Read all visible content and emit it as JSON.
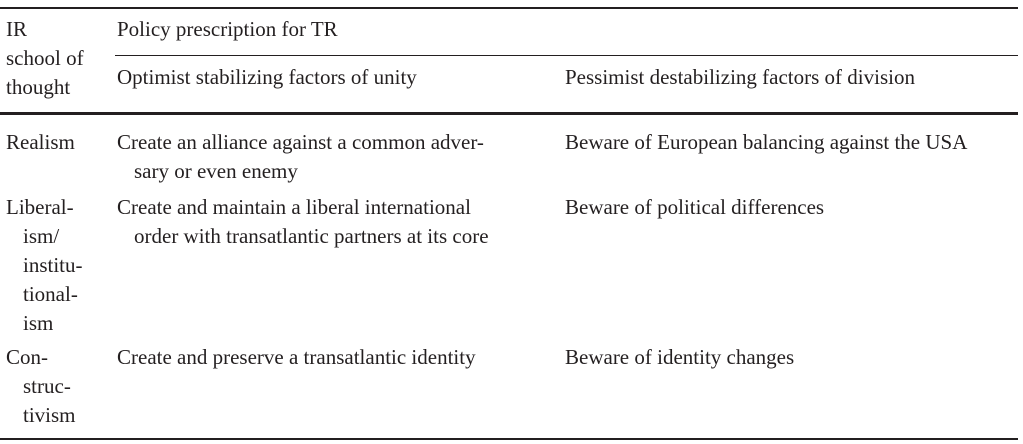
{
  "table": {
    "header": {
      "school_col": [
        "IR",
        "school of",
        "thought"
      ],
      "policy_label": "Policy prescription for TR",
      "optimist_label": "Optimist stabilizing factors of unity",
      "pessimist_label": "Pessimist destabilizing factors of division"
    },
    "rows": [
      {
        "school": [
          "Realism"
        ],
        "optimist": [
          "Create an alliance against a common adver-",
          "sary or even enemy"
        ],
        "pessimist": [
          "Beware of European balancing against the USA"
        ]
      },
      {
        "school": [
          "Liberal-",
          "ism/",
          "institu-",
          "tional-",
          "ism"
        ],
        "optimist": [
          "Create and maintain a liberal international",
          "order with transatlantic partners at its core"
        ],
        "pessimist": [
          "Beware of political differences"
        ]
      },
      {
        "school": [
          "Con-",
          "struc-",
          "tivism"
        ],
        "optimist": [
          "Create and preserve a transatlantic identity"
        ],
        "pessimist": [
          "Beware of identity changes"
        ]
      }
    ]
  }
}
